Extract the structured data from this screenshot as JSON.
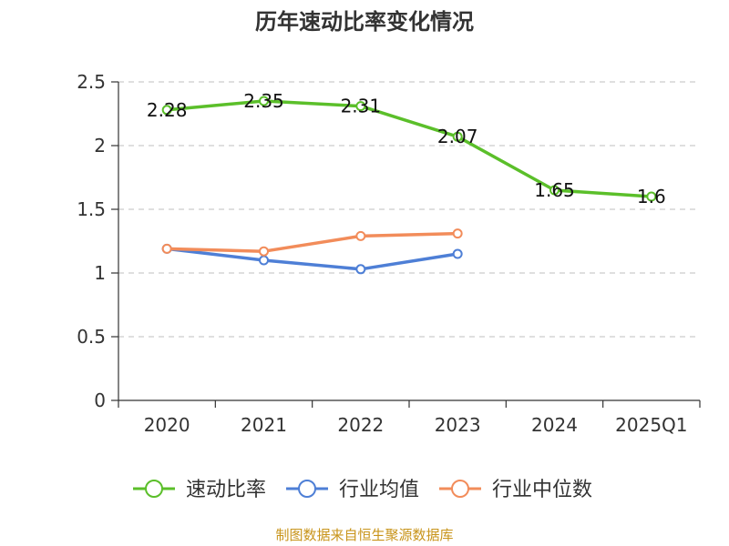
{
  "chart_data": {
    "type": "line",
    "title": "历年速动比率变化情况",
    "categories": [
      "2020",
      "2021",
      "2022",
      "2023",
      "2024",
      "2025Q1"
    ],
    "yticks": [
      "0",
      "0.5",
      "1",
      "1.5",
      "2",
      "2.5"
    ],
    "ylim": [
      0,
      2.5
    ],
    "grid": true,
    "legend_position": "bottom",
    "series": [
      {
        "name": "速动比率",
        "color": "#5bbf2a",
        "values": [
          2.28,
          2.35,
          2.31,
          2.07,
          1.65,
          1.6
        ],
        "labels": [
          "2.28",
          "2.35",
          "2.31",
          "2.07",
          "1.65",
          "1.6"
        ]
      },
      {
        "name": "行业均值",
        "color": "#4e7fd6",
        "values": [
          1.19,
          1.1,
          1.03,
          1.15,
          null,
          null
        ]
      },
      {
        "name": "行业中位数",
        "color": "#f28c5a",
        "values": [
          1.19,
          1.17,
          1.29,
          1.31,
          null,
          null
        ]
      }
    ]
  },
  "source_note": "制图数据来自恒生聚源数据库"
}
